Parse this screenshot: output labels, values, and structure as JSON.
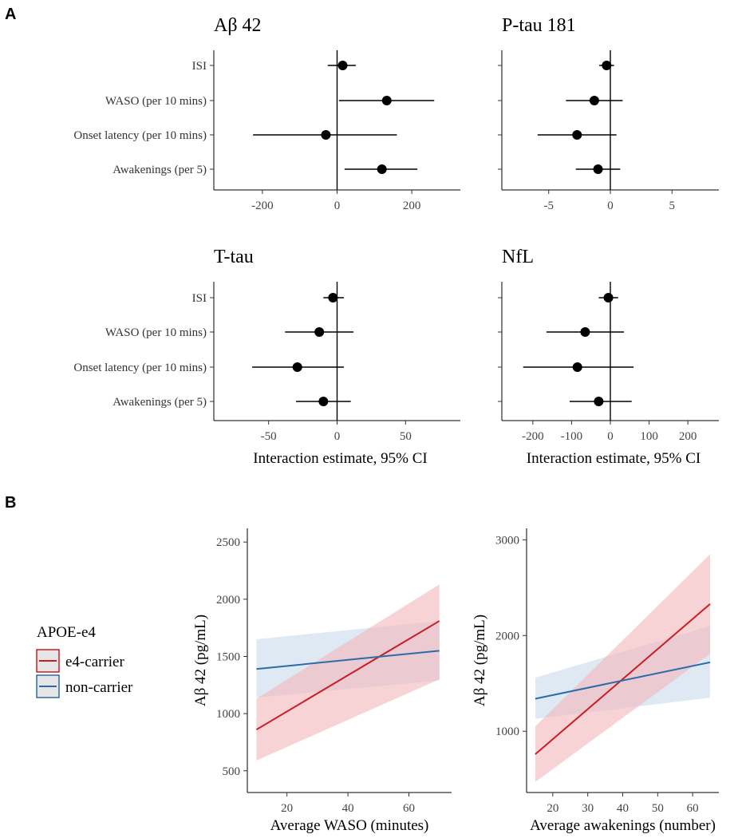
{
  "panels": {
    "a": "A",
    "b": "B"
  },
  "chart_data": [
    {
      "type": "forest",
      "title": "Aβ 42",
      "categories": [
        "ISI",
        "WASO (per 10 mins)",
        "Onset latency (per 10 mins)",
        "Awakenings (per 5)"
      ],
      "estimates": [
        15,
        133,
        -30,
        120
      ],
      "ci_low": [
        -25,
        5,
        -225,
        20
      ],
      "ci_high": [
        50,
        260,
        160,
        215
      ],
      "xlim": [
        -330,
        330
      ],
      "xticks": [
        -200,
        0,
        200
      ],
      "xlabel": ""
    },
    {
      "type": "forest",
      "title": "P-tau 181",
      "categories": [
        "ISI",
        "WASO (per 10 mins)",
        "Onset latency (per 10 mins)",
        "Awakenings (per 5)"
      ],
      "estimates": [
        -0.3,
        -1.3,
        -2.7,
        -1.0
      ],
      "ci_low": [
        -0.9,
        -3.6,
        -5.9,
        -2.8
      ],
      "ci_high": [
        0.3,
        1.0,
        0.5,
        0.8
      ],
      "xlim": [
        -8.8,
        8.8
      ],
      "xticks": [
        -5,
        0,
        5
      ],
      "xlabel": ""
    },
    {
      "type": "forest",
      "title": "T-tau",
      "categories": [
        "ISI",
        "WASO (per 10 mins)",
        "Onset latency (per 10 mins)",
        "Awakenings (per 5)"
      ],
      "estimates": [
        -3,
        -13,
        -29,
        -10
      ],
      "ci_low": [
        -10,
        -38,
        -62,
        -30
      ],
      "ci_high": [
        5,
        12,
        5,
        10
      ],
      "xlim": [
        -90,
        90
      ],
      "xticks": [
        -50,
        0,
        50
      ],
      "xlabel": "Interaction estimate, 95% CI"
    },
    {
      "type": "forest",
      "title": "NfL",
      "categories": [
        "ISI",
        "WASO (per 10 mins)",
        "Onset latency (per 10 mins)",
        "Awakenings (per 5)"
      ],
      "estimates": [
        -5,
        -65,
        -85,
        -30
      ],
      "ci_low": [
        -30,
        -165,
        -225,
        -105
      ],
      "ci_high": [
        20,
        35,
        60,
        55
      ],
      "xlim": [
        -280,
        280
      ],
      "xticks": [
        -200,
        -100,
        0,
        100,
        200
      ],
      "xlabel": "Interaction estimate, 95% CI"
    },
    {
      "type": "line",
      "title": "",
      "xlabel": "Average WASO (minutes)",
      "ylabel": "Aβ 42 (pg/mL)",
      "xlim": [
        7,
        74
      ],
      "ylim": [
        310,
        2620
      ],
      "xticks": [
        20,
        40,
        60
      ],
      "yticks": [
        500,
        1000,
        1500,
        2000,
        2500
      ],
      "series": [
        {
          "name": "e4-carrier",
          "x": [
            10,
            70
          ],
          "y": [
            860,
            1810
          ],
          "ci_low": [
            590,
            1300
          ],
          "ci_high": [
            1130,
            2130
          ]
        },
        {
          "name": "non-carrier",
          "x": [
            10,
            70
          ],
          "y": [
            1390,
            1550
          ],
          "ci_low": [
            1140,
            1290
          ],
          "ci_high": [
            1650,
            1810
          ]
        }
      ]
    },
    {
      "type": "line",
      "title": "",
      "xlabel": "Average awakenings (number)",
      "ylabel": "Aβ 42 (pg/mL)",
      "xlim": [
        12.5,
        67.5
      ],
      "ylim": [
        360,
        3120
      ],
      "xticks": [
        20,
        30,
        40,
        50,
        60
      ],
      "yticks": [
        1000,
        2000,
        3000
      ],
      "series": [
        {
          "name": "e4-carrier",
          "x": [
            15,
            65
          ],
          "y": [
            760,
            2330
          ],
          "ci_low": [
            470,
            1810
          ],
          "ci_high": [
            1050,
            2850
          ]
        },
        {
          "name": "non-carrier",
          "x": [
            15,
            65
          ],
          "y": [
            1340,
            1720
          ],
          "ci_low": [
            1130,
            1350
          ],
          "ci_high": [
            1560,
            2100
          ]
        }
      ]
    }
  ],
  "legend": {
    "title": "APOE-e4",
    "items": [
      {
        "label": "e4-carrier",
        "color": "#c81e24"
      },
      {
        "label": "non-carrier",
        "color": "#2b6ca8"
      }
    ]
  },
  "colors": {
    "carrier": "#c81e24",
    "carrier_band": "#f4b6b9",
    "noncarrier": "#2b6ca8",
    "noncarrier_band": "#c9dbec"
  }
}
